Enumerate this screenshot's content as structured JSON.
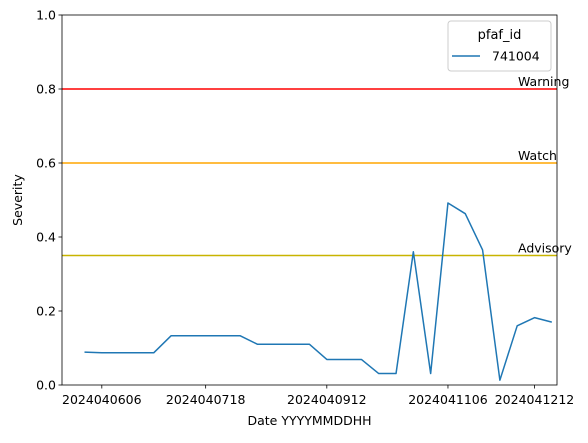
{
  "chart_data": {
    "type": "line",
    "xlabel": "Date YYYYMMDDHH",
    "ylabel": "Severity",
    "ylim": [
      0,
      1
    ],
    "yticks": [
      0.0,
      0.2,
      0.4,
      0.6,
      0.8,
      1.0
    ],
    "ytick_labels": [
      "0.0",
      "0.2",
      "0.4",
      "0.6",
      "0.8",
      "1.0"
    ],
    "xlim": [
      -1.3,
      27.3
    ],
    "xticks": [
      {
        "index": 1,
        "label": "2024040606"
      },
      {
        "index": 7,
        "label": "2024040718"
      },
      {
        "index": 14,
        "label": "2024040912"
      },
      {
        "index": 21,
        "label": "2024041106"
      },
      {
        "index": 26,
        "label": "2024041212"
      }
    ],
    "legend": {
      "title": "pfaf_id",
      "position": "upper right"
    },
    "series": [
      {
        "name": "741004",
        "color": "#1f77b4",
        "values": [
          0.089,
          0.087,
          0.087,
          0.087,
          0.087,
          0.133,
          0.133,
          0.133,
          0.133,
          0.133,
          0.11,
          0.11,
          0.11,
          0.11,
          0.069,
          0.069,
          0.069,
          0.031,
          0.031,
          0.36,
          0.031,
          0.492,
          0.463,
          0.365,
          0.013,
          0.16,
          0.182,
          0.17
        ]
      }
    ],
    "thresholds": [
      {
        "label": "Warning",
        "value": 0.8,
        "color": "#ff0000"
      },
      {
        "label": "Watch",
        "value": 0.6,
        "color": "#ffa500"
      },
      {
        "label": "Advisory",
        "value": 0.35,
        "color": "#c8b400"
      }
    ]
  }
}
